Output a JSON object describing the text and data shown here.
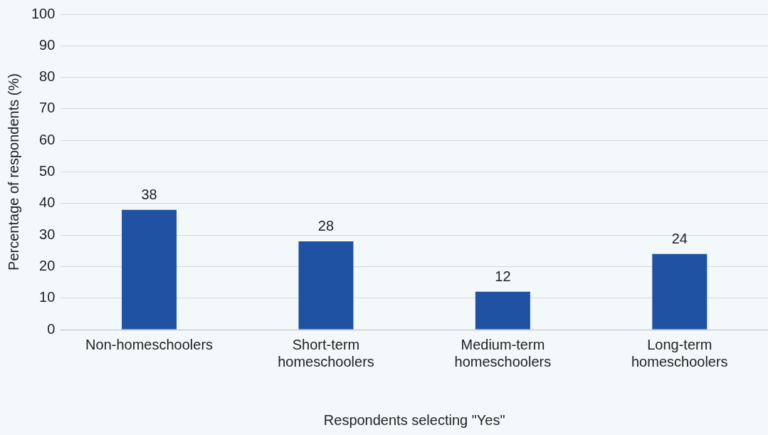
{
  "chart_data": {
    "type": "bar",
    "xlabel": "Respondents selecting \"Yes\"",
    "ylabel": "Percentage of respondents (%)",
    "categories": [
      "Non-homeschoolers",
      "Short-term homeschoolers",
      "Medium-term homeschoolers",
      "Long-term homeschoolers"
    ],
    "values": [
      38,
      28,
      12,
      24
    ],
    "color": "#1f52a3",
    "ylim": [
      0,
      100
    ],
    "yticks": [
      0,
      10,
      20,
      30,
      40,
      50,
      60,
      70,
      80,
      90,
      100
    ],
    "grid": "y",
    "data_labels": true,
    "legend": false
  }
}
